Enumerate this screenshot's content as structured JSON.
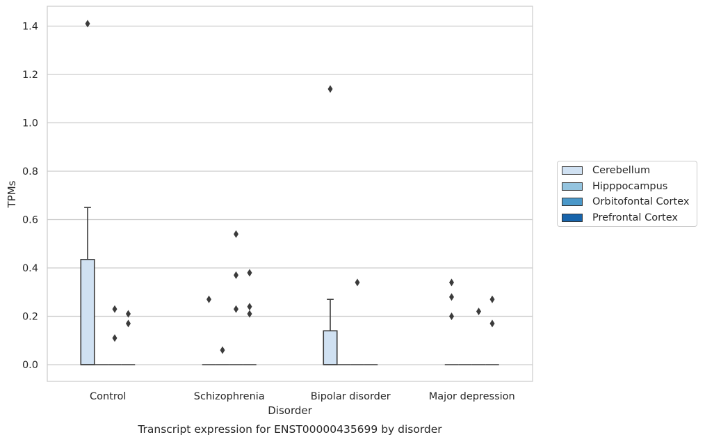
{
  "chart_data": {
    "type": "box",
    "xlabel": "Disorder",
    "ylabel": "TPMs",
    "caption": "Transcript expression for ENST00000435699 by disorder",
    "categories": [
      "Control",
      "Schizophrenia",
      "Bipolar disorder",
      "Major depression"
    ],
    "ylim": [
      -0.07,
      1.48
    ],
    "yticks": [
      "0.0",
      "0.2",
      "0.4",
      "0.6",
      "0.8",
      "1.0",
      "1.2",
      "1.4"
    ],
    "grid": "horizontal",
    "legend_position": "right",
    "series": [
      {
        "name": "Cerebellum",
        "color": "#d0e1f2",
        "boxes": [
          {
            "q1": 0,
            "median": 0,
            "q3": 0.435,
            "whisker_low": 0,
            "whisker_high": 0.65,
            "outliers": [
              1.41
            ]
          },
          {
            "q1": 0,
            "median": 0,
            "q3": 0,
            "whisker_low": 0,
            "whisker_high": 0,
            "outliers": [
              0.27
            ]
          },
          {
            "q1": 0,
            "median": 0,
            "q3": 0.14,
            "whisker_low": 0,
            "whisker_high": 0.27,
            "outliers": [
              1.14
            ]
          },
          {
            "q1": 0,
            "median": 0,
            "q3": 0,
            "whisker_low": 0,
            "whisker_high": 0,
            "outliers": [
              0.34,
              0.28,
              0.2
            ]
          }
        ]
      },
      {
        "name": "Hipppocampus",
        "color": "#94c4df",
        "boxes": [
          {
            "q1": 0,
            "median": 0,
            "q3": 0,
            "whisker_low": 0,
            "whisker_high": 0,
            "outliers": []
          },
          {
            "q1": 0,
            "median": 0,
            "q3": 0,
            "whisker_low": 0,
            "whisker_high": 0,
            "outliers": [
              0.06
            ]
          },
          {
            "q1": 0,
            "median": 0,
            "q3": 0,
            "whisker_low": 0,
            "whisker_high": 0,
            "outliers": []
          },
          {
            "q1": 0,
            "median": 0,
            "q3": 0,
            "whisker_low": 0,
            "whisker_high": 0,
            "outliers": []
          }
        ]
      },
      {
        "name": "Orbitofontal Cortex",
        "color": "#4a98c9",
        "boxes": [
          {
            "q1": 0,
            "median": 0,
            "q3": 0,
            "whisker_low": 0,
            "whisker_high": 0,
            "outliers": [
              0.23,
              0.11
            ]
          },
          {
            "q1": 0,
            "median": 0,
            "q3": 0,
            "whisker_low": 0,
            "whisker_high": 0,
            "outliers": [
              0.54,
              0.37,
              0.23
            ]
          },
          {
            "q1": 0,
            "median": 0,
            "q3": 0,
            "whisker_low": 0,
            "whisker_high": 0,
            "outliers": [
              0.34
            ]
          },
          {
            "q1": 0,
            "median": 0,
            "q3": 0,
            "whisker_low": 0,
            "whisker_high": 0,
            "outliers": [
              0.22
            ]
          }
        ]
      },
      {
        "name": "Prefrontal Cortex",
        "color": "#1764ab",
        "boxes": [
          {
            "q1": 0,
            "median": 0,
            "q3": 0,
            "whisker_low": 0,
            "whisker_high": 0,
            "outliers": [
              0.21,
              0.17
            ]
          },
          {
            "q1": 0,
            "median": 0,
            "q3": 0,
            "whisker_low": 0,
            "whisker_high": 0,
            "outliers": [
              0.38,
              0.24,
              0.21
            ]
          },
          {
            "q1": 0,
            "median": 0,
            "q3": 0,
            "whisker_low": 0,
            "whisker_high": 0,
            "outliers": []
          },
          {
            "q1": 0,
            "median": 0,
            "q3": 0,
            "whisker_low": 0,
            "whisker_high": 0,
            "outliers": [
              0.27,
              0.17
            ]
          }
        ]
      }
    ]
  }
}
